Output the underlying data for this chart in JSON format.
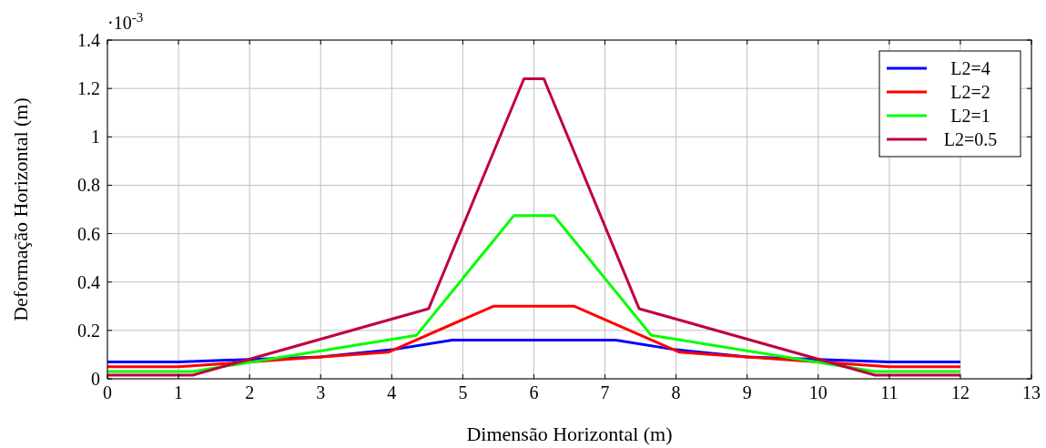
{
  "chart_data": {
    "type": "line",
    "xlabel": "Dimensão Horizontal (m)",
    "ylabel": "Deformação Horizontal (m)",
    "annotations": [
      "·10$^{-3}$"
    ],
    "xlim": [
      0,
      13
    ],
    "xticks": [
      0,
      1,
      2,
      3,
      4,
      5,
      6,
      7,
      8,
      9,
      10,
      11,
      12,
      13
    ],
    "ylim": [
      0,
      1.4
    ],
    "yticks": [
      0,
      0.2,
      0.4,
      0.6,
      0.8,
      1,
      1.2,
      1.4
    ],
    "grid": true,
    "legend": "top right",
    "line_style": "solid",
    "series": [
      {
        "name": "L2=4",
        "color": "#0000ff",
        "x": [
          0,
          1,
          2,
          3,
          4,
          4.85,
          7.15,
          8,
          9,
          10,
          11,
          12
        ],
        "values": [
          0.07,
          0.07,
          0.08,
          0.09,
          0.12,
          0.16,
          0.16,
          0.12,
          0.09,
          0.08,
          0.07,
          0.07
        ]
      },
      {
        "name": "L2=2",
        "color": "#ff0000",
        "x": [
          0,
          1,
          2,
          3,
          3.95,
          5.43,
          6.57,
          8.05,
          9,
          10,
          11,
          12
        ],
        "values": [
          0.05,
          0.05,
          0.07,
          0.09,
          0.11,
          0.3,
          0.3,
          0.11,
          0.09,
          0.07,
          0.05,
          0.05
        ]
      },
      {
        "name": "L2=1",
        "color": "#00ff00",
        "x": [
          0,
          1.2,
          4.35,
          5.72,
          6.28,
          7.65,
          10.8,
          12
        ],
        "values": [
          0.03,
          0.03,
          0.18,
          0.675,
          0.675,
          0.18,
          0.03,
          0.03
        ]
      },
      {
        "name": "L2=0.5",
        "color": "#bf0040",
        "x": [
          0,
          1.2,
          4.52,
          5.86,
          6.14,
          7.48,
          10.8,
          12
        ],
        "values": [
          0.015,
          0.015,
          0.29,
          1.24,
          1.24,
          0.29,
          0.015,
          0.015
        ]
      }
    ]
  }
}
